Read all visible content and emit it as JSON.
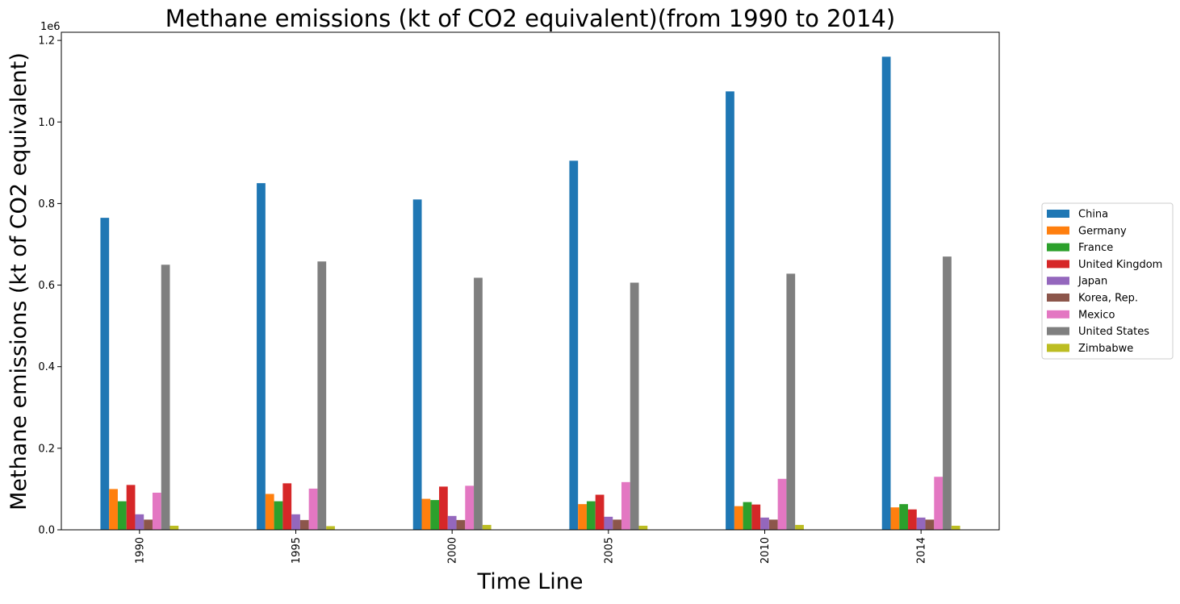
{
  "chart_data": {
    "type": "bar",
    "title": "Methane emissions (kt of CO2 equivalent)(from 1990 to 2014)",
    "xlabel": "Time Line",
    "ylabel": "Methane emissions (kt of CO2 equivalent)",
    "y_offset_label": "1e6",
    "y_scale": 1000000,
    "categories": [
      "1990",
      "1995",
      "2000",
      "2005",
      "2010",
      "2014"
    ],
    "ylim": [
      0,
      1220000
    ],
    "yticks": [
      0,
      200000,
      400000,
      600000,
      800000,
      1000000,
      1200000
    ],
    "ytick_labels": [
      "0.0",
      "0.2",
      "0.4",
      "0.6",
      "0.8",
      "1.0",
      "1.2"
    ],
    "grid": false,
    "legend_position": "right, outside plot area",
    "series": [
      {
        "name": "China",
        "color": "#1f77b4",
        "values": [
          765000,
          850000,
          810000,
          905000,
          1075000,
          1160000
        ]
      },
      {
        "name": "Germany",
        "color": "#ff7f0e",
        "values": [
          100000,
          88000,
          76000,
          63000,
          58000,
          55000
        ]
      },
      {
        "name": "France",
        "color": "#2ca02c",
        "values": [
          70000,
          70000,
          73000,
          70000,
          68000,
          63000
        ]
      },
      {
        "name": "United Kingdom",
        "color": "#d62728",
        "values": [
          110000,
          114000,
          106000,
          86000,
          62000,
          50000
        ]
      },
      {
        "name": "Japan",
        "color": "#9467bd",
        "values": [
          38000,
          38000,
          34000,
          32000,
          30000,
          30000
        ]
      },
      {
        "name": "Korea, Rep.",
        "color": "#8c564b",
        "values": [
          25000,
          24000,
          24000,
          25000,
          25000,
          25000
        ]
      },
      {
        "name": "Mexico",
        "color": "#e377c2",
        "values": [
          91000,
          101000,
          108000,
          117000,
          125000,
          130000
        ]
      },
      {
        "name": "United States",
        "color": "#7f7f7f",
        "values": [
          650000,
          658000,
          618000,
          606000,
          628000,
          670000
        ]
      },
      {
        "name": "Zimbabwe",
        "color": "#bcbd22",
        "values": [
          10000,
          9000,
          12000,
          10000,
          12000,
          10000
        ]
      }
    ]
  }
}
